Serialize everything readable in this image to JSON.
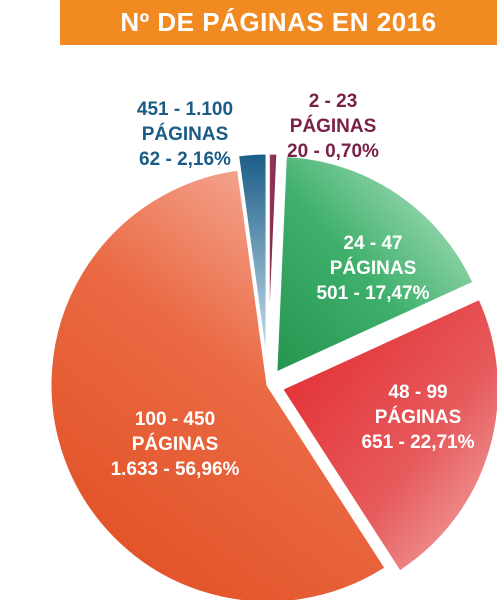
{
  "chart_data": {
    "type": "pie",
    "title": "Nº DE PÁGINAS EN 2016",
    "slices": [
      {
        "category": "2 - 23",
        "unit": "PÁGINAS",
        "value": 20,
        "percent": "0,70%",
        "value_text": "20 - 0,70%",
        "color": "#7a2048",
        "exploded": true
      },
      {
        "category": "24 - 47",
        "unit": "PÁGINAS",
        "value": 501,
        "percent": "17,47%",
        "value_text": "501 - 17,47%",
        "color": "#2fa25e",
        "exploded": true
      },
      {
        "category": "48 - 99",
        "unit": "PÁGINAS",
        "value": 651,
        "percent": "22,71%",
        "value_text": "651 - 22,71%",
        "color": "#e23a3a",
        "exploded": true
      },
      {
        "category": "100 - 450",
        "unit": "PÁGINAS",
        "value": 1633,
        "percent": "56,96%",
        "value_text": "1.633 - 56,96%",
        "color": "#e8562e",
        "exploded": false
      },
      {
        "category": "451 - 1.100",
        "unit": "PÁGINAS",
        "value": 62,
        "percent": "2,16%",
        "value_text": "62 - 2,16%",
        "color": "#1a5c86",
        "exploded": true
      }
    ]
  }
}
